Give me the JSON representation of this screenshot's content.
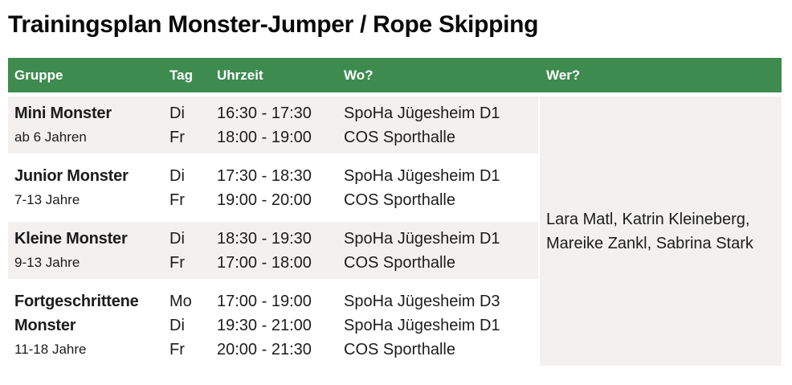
{
  "page": {
    "title": "Trainingsplan Monster-Jumper / Rope Skipping"
  },
  "colors": {
    "header_green": "#3e8b4f",
    "row_gray": "#f2f1f0",
    "text_dark": "#1c1c1c"
  },
  "table": {
    "headers": {
      "gruppe": "Gruppe",
      "tag": "Tag",
      "uhrzeit": "Uhrzeit",
      "wo": "Wo?",
      "wer": "Wer?"
    },
    "rows": [
      {
        "name": "Mini Monster",
        "age": "ab 6 Jahren",
        "sessions": [
          {
            "day": "Di",
            "time": "16:30 - 17:30",
            "location": "SpoHa Jügesheim D1"
          },
          {
            "day": "Fr",
            "time": "18:00 - 19:00",
            "location": "COS Sporthalle"
          }
        ]
      },
      {
        "name": "Junior Monster",
        "age": "7-13 Jahre",
        "sessions": [
          {
            "day": "Di",
            "time": "17:30 - 18:30",
            "location": "SpoHa Jügesheim D1"
          },
          {
            "day": "Fr",
            "time": "19:00 - 20:00",
            "location": "COS Sporthalle"
          }
        ]
      },
      {
        "name": "Kleine Monster",
        "age": "9-13 Jahre",
        "sessions": [
          {
            "day": "Di",
            "time": "18:30 - 19:30",
            "location": "SpoHa Jügesheim D1"
          },
          {
            "day": "Fr",
            "time": "17:00 - 18:00",
            "location": "COS Sporthalle"
          }
        ]
      },
      {
        "name": "Fortgeschrittene Monster",
        "age": "11-18 Jahre",
        "sessions": [
          {
            "day": "Mo",
            "time": "17:00 - 19:00",
            "location": "SpoHa Jügesheim D3"
          },
          {
            "day": "Di",
            "time": "19:30 - 21:00",
            "location": "SpoHa Jügesheim D1"
          },
          {
            "day": "Fr",
            "time": "20:00 - 21:30",
            "location": "COS Sporthalle"
          }
        ]
      }
    ],
    "trainers": {
      "line1": "Lara Matl, Katrin Kleineberg,",
      "line2": "Mareike Zankl, Sabrina Stark"
    }
  }
}
